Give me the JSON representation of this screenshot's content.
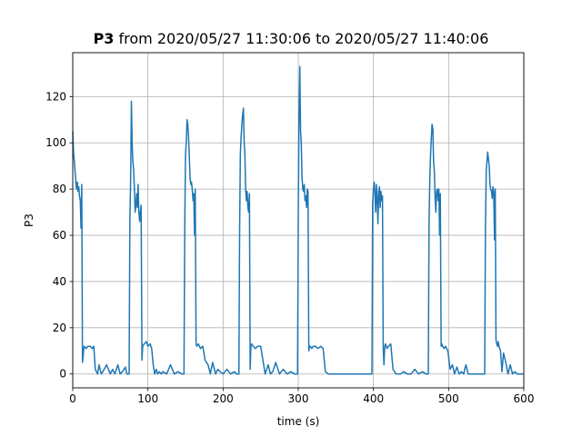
{
  "chart_data": {
    "type": "line",
    "title_bold": "P3",
    "title_rest": " from 2020/05/27 11:30:06 to 2020/05/27 11:40:06",
    "xlabel": "time (s)",
    "ylabel": "P3",
    "xlim": [
      0,
      600
    ],
    "ylim": [
      -6,
      139
    ],
    "xticks": [
      0,
      100,
      200,
      300,
      400,
      500,
      600
    ],
    "yticks": [
      0,
      20,
      40,
      60,
      80,
      100,
      120
    ],
    "grid": true,
    "legend": "none",
    "colors": {
      "line": "#1f77b4"
    },
    "series": [
      {
        "x": [
          0,
          1,
          2,
          3,
          4,
          5,
          6,
          7,
          8,
          9,
          10,
          11,
          12,
          13,
          15,
          18,
          20,
          23,
          26,
          28,
          30,
          33,
          35,
          38,
          40,
          45,
          50,
          53,
          56,
          60,
          63,
          66,
          70,
          72,
          74,
          75,
          76,
          77,
          78,
          79,
          80,
          81,
          82,
          83,
          84,
          85,
          86,
          87,
          88,
          89,
          90,
          91,
          92,
          93,
          95,
          98,
          100,
          103,
          105,
          107,
          109,
          111,
          113,
          115,
          118,
          120,
          125,
          130,
          135,
          140,
          145,
          147,
          148,
          149,
          150,
          151,
          152,
          153,
          154,
          155,
          156,
          157,
          158,
          159,
          160,
          161,
          162,
          163,
          164,
          165,
          167,
          170,
          173,
          176,
          180,
          183,
          186,
          190,
          193,
          196,
          200,
          205,
          210,
          215,
          218,
          220,
          221,
          222,
          223,
          224,
          225,
          226,
          227,
          228,
          229,
          230,
          231,
          232,
          233,
          234,
          235,
          236,
          237,
          238,
          240,
          243,
          246,
          250,
          253,
          256,
          260,
          263,
          266,
          270,
          275,
          280,
          285,
          290,
          295,
          298,
          299,
          300,
          301,
          302,
          303,
          304,
          305,
          306,
          307,
          308,
          309,
          310,
          311,
          312,
          313,
          314,
          315,
          316,
          318,
          320,
          323,
          326,
          330,
          333,
          336,
          340,
          345,
          350,
          360,
          370,
          380,
          390,
          395,
          397,
          398,
          399,
          400,
          401,
          402,
          403,
          404,
          405,
          406,
          407,
          408,
          409,
          410,
          411,
          412,
          413,
          414,
          415,
          416,
          418,
          420,
          423,
          426,
          430,
          433,
          436,
          440,
          445,
          450,
          455,
          460,
          465,
          470,
          472,
          473,
          474,
          475,
          476,
          477,
          478,
          479,
          480,
          481,
          482,
          483,
          484,
          485,
          486,
          487,
          488,
          489,
          490,
          491,
          492,
          494,
          496,
          499,
          502,
          505,
          508,
          511,
          514,
          517,
          520,
          523,
          526,
          530,
          535,
          540,
          545,
          548,
          549,
          550,
          551,
          552,
          553,
          554,
          555,
          556,
          557,
          558,
          559,
          560,
          561,
          562,
          563,
          564,
          565,
          566,
          567,
          569,
          571,
          573,
          576,
          579,
          582,
          585,
          588,
          591,
          594,
          597,
          600
        ],
        "y": [
          105,
          96,
          92,
          88,
          84,
          80,
          83,
          79,
          81,
          77,
          75,
          63,
          82,
          5,
          12,
          11,
          12,
          12,
          11,
          12,
          2,
          0,
          4,
          0,
          1,
          4,
          0,
          2,
          0,
          4,
          0,
          1,
          3,
          0,
          0,
          0,
          65,
          85,
          118,
          100,
          92,
          88,
          80,
          70,
          73,
          78,
          72,
          82,
          70,
          66,
          70,
          73,
          6,
          12,
          13,
          14,
          12,
          13,
          11,
          4,
          0,
          2,
          0,
          1,
          0,
          1,
          0,
          4,
          0,
          1,
          0,
          0,
          0,
          65,
          95,
          100,
          110,
          108,
          103,
          95,
          85,
          82,
          83,
          80,
          75,
          78,
          60,
          80,
          13,
          12,
          13,
          11,
          12,
          6,
          4,
          0,
          5,
          0,
          2,
          1,
          0,
          2,
          0,
          1,
          0,
          0,
          0,
          62,
          95,
          103,
          108,
          112,
          115,
          100,
          95,
          80,
          75,
          79,
          72,
          70,
          78,
          2,
          12,
          13,
          12,
          11,
          12,
          12,
          6,
          0,
          4,
          0,
          1,
          5,
          0,
          2,
          0,
          1,
          0,
          0,
          0,
          68,
          112,
          133,
          105,
          100,
          85,
          80,
          79,
          82,
          75,
          77,
          72,
          80,
          79,
          10,
          12,
          12,
          11,
          12,
          12,
          11,
          12,
          11,
          1,
          0,
          0,
          0,
          0,
          0,
          0,
          0,
          0,
          0,
          0,
          74,
          80,
          83,
          78,
          70,
          82,
          76,
          65,
          79,
          81,
          72,
          79,
          75,
          77,
          12,
          4,
          12,
          13,
          11,
          12,
          13,
          2,
          0,
          0,
          0,
          1,
          0,
          0,
          2,
          0,
          1,
          0,
          0,
          0,
          65,
          85,
          95,
          102,
          108,
          106,
          92,
          88,
          76,
          70,
          79,
          80,
          75,
          80,
          60,
          78,
          12,
          13,
          12,
          11,
          12,
          10,
          2,
          4,
          0,
          3,
          0,
          1,
          0,
          4,
          0,
          0,
          0,
          0,
          0,
          0,
          62,
          88,
          92,
          96,
          93,
          90,
          82,
          80,
          79,
          76,
          81,
          79,
          58,
          80,
          15,
          13,
          12,
          14,
          12,
          10,
          1,
          9,
          5,
          0,
          4,
          0,
          1,
          0,
          0,
          0,
          0
        ]
      }
    ]
  }
}
